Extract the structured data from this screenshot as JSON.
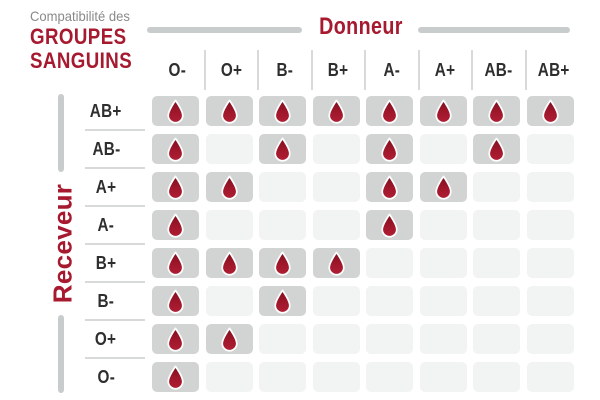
{
  "title": {
    "pre": "Compatibilité des",
    "line1": "GROUPES",
    "line2": "SANGUINS"
  },
  "axes": {
    "donor_label": "Donneur",
    "receiver_label": "Receveur"
  },
  "icons": {
    "cell_marker": "blood-drop-icon"
  },
  "colors": {
    "accent_red": "#A6192E",
    "ink": "#2E2E2E",
    "muted_gray": "#8A8A8A",
    "bar_gray": "#C9CCCD",
    "separator_gray": "#D8DADA",
    "cell_filled_gray": "#D2D4D4",
    "cell_empty_gray": "#F2F3F3",
    "drop_gradient": [
      "#7E101F",
      "#9E162A",
      "#B01E34"
    ]
  },
  "chart_data": {
    "type": "heatmap",
    "title": "Compatibilité des GROUPES SANGUINS",
    "x_axis_title": "Donneur",
    "y_axis_title": "Receveur",
    "columns": [
      "O-",
      "O+",
      "B-",
      "B+",
      "A-",
      "A+",
      "AB-",
      "AB+"
    ],
    "rows": [
      "AB+",
      "AB-",
      "A+",
      "A-",
      "B+",
      "B-",
      "O+",
      "O-"
    ],
    "values": [
      [
        1,
        1,
        1,
        1,
        1,
        1,
        1,
        1
      ],
      [
        1,
        0,
        1,
        0,
        1,
        0,
        1,
        0
      ],
      [
        1,
        1,
        0,
        0,
        1,
        1,
        0,
        0
      ],
      [
        1,
        0,
        0,
        0,
        1,
        0,
        0,
        0
      ],
      [
        1,
        1,
        1,
        1,
        0,
        0,
        0,
        0
      ],
      [
        1,
        0,
        1,
        0,
        0,
        0,
        0,
        0
      ],
      [
        1,
        1,
        0,
        0,
        0,
        0,
        0,
        0
      ],
      [
        1,
        0,
        0,
        0,
        0,
        0,
        0,
        0
      ]
    ],
    "value_meaning": {
      "1": "compatible — blood drop shown on gray cell",
      "0": "not compatible — empty light cell"
    },
    "legend_position": "none",
    "grid": "off"
  }
}
